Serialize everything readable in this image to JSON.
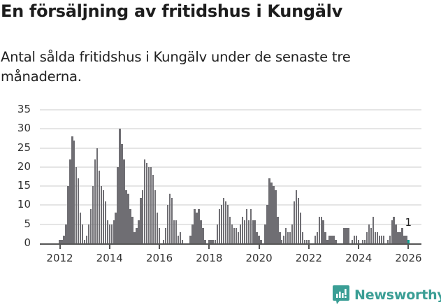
{
  "header": {
    "title": "En försäljning av fritidshus i Kungälv",
    "subtitle": "Antal sålda fritidshus i Kungälv under de senaste tre månaderna."
  },
  "branding": {
    "name": "Newsworthy",
    "color": "#3a9e95"
  },
  "chart_data": {
    "type": "bar",
    "title": "En försäljning av fritidshus i Kungälv",
    "subtitle": "Antal sålda fritidshus i Kungälv under de senaste tre månaderna.",
    "xlabel": "",
    "ylabel": "",
    "ylim": [
      0,
      35
    ],
    "yticks": [
      0,
      5,
      10,
      15,
      20,
      25,
      30,
      35
    ],
    "xticks": [
      "2012",
      "2014",
      "2016",
      "2018",
      "2020",
      "2022",
      "2024",
      "2026"
    ],
    "grid": true,
    "legend": "none",
    "x_start": "2012-01",
    "x_end": "2026-01",
    "frequency": "monthly",
    "bar_color": "#6f6e73",
    "highlight_color": "#10a394",
    "annotation": {
      "label": "1",
      "x": "2026-01",
      "value": 1
    },
    "values": [
      1,
      1,
      2,
      5,
      15,
      22,
      28,
      27,
      20,
      17,
      8,
      5,
      1,
      2,
      5,
      9,
      15,
      22,
      25,
      19,
      15,
      14,
      11,
      6,
      5,
      5,
      6,
      8,
      20,
      30,
      26,
      22,
      14,
      13,
      9,
      7,
      3,
      4,
      6,
      12,
      14,
      22,
      21,
      20,
      20,
      18,
      14,
      8,
      4,
      0,
      1,
      4,
      10,
      13,
      12,
      6,
      6,
      2,
      3,
      1,
      0,
      0,
      0,
      2,
      5,
      9,
      8,
      9,
      6,
      4,
      1,
      0,
      1,
      1,
      1,
      1,
      5,
      9,
      10,
      12,
      11,
      10,
      7,
      5,
      4,
      4,
      3,
      5,
      7,
      6,
      9,
      6,
      9,
      6,
      6,
      3,
      2,
      1,
      0,
      5,
      10,
      17,
      16,
      15,
      14,
      7,
      3,
      1,
      2,
      4,
      3,
      3,
      5,
      11,
      14,
      12,
      8,
      3,
      1,
      1,
      1,
      0,
      0,
      2,
      3,
      7,
      7,
      6,
      3,
      1,
      2,
      2,
      2,
      1,
      0,
      0,
      0,
      4,
      4,
      4,
      0,
      1,
      2,
      2,
      1,
      0,
      1,
      1,
      3,
      5,
      4,
      7,
      3,
      3,
      2,
      2,
      2,
      0,
      1,
      2,
      6,
      7,
      5,
      3,
      3,
      4,
      2,
      2,
      1
    ]
  }
}
